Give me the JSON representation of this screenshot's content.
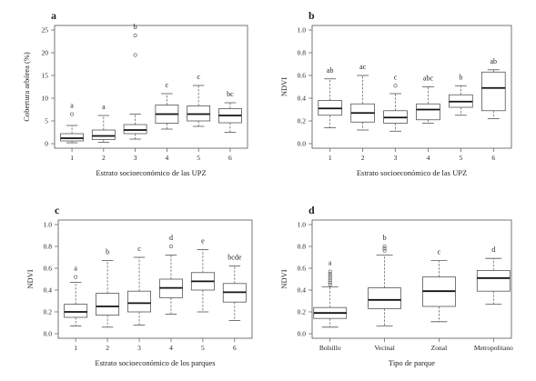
{
  "chart_data": [
    {
      "type": "box",
      "panel_label": "a",
      "title": "",
      "xlabel": "Estrato socioeconómico de las UPZ",
      "ylabel": "Cobertura arbórea (%)",
      "ylim": [
        0,
        25
      ],
      "yticks": [
        "0",
        "5",
        "10",
        "15",
        "20",
        "25"
      ],
      "yticks_values": [
        0,
        5,
        10,
        15,
        20,
        25
      ],
      "categories": [
        "1",
        "2",
        "3",
        "4",
        "5",
        "6"
      ],
      "boxes": [
        {
          "min": 0.2,
          "q1": 0.6,
          "median": 1.2,
          "q3": 2.2,
          "max": 4.0,
          "outliers": [
            6.5
          ]
        },
        {
          "min": 0.3,
          "q1": 0.9,
          "median": 1.7,
          "q3": 3.0,
          "max": 6.2,
          "outliers": []
        },
        {
          "min": 1.0,
          "q1": 2.2,
          "median": 3.0,
          "q3": 4.2,
          "max": 6.5,
          "outliers": [
            19.5,
            23.8
          ]
        },
        {
          "min": 3.2,
          "q1": 4.5,
          "median": 6.5,
          "q3": 8.5,
          "max": 11.0,
          "outliers": []
        },
        {
          "min": 3.8,
          "q1": 5.0,
          "median": 6.5,
          "q3": 8.3,
          "max": 12.8,
          "outliers": []
        },
        {
          "min": 2.5,
          "q1": 4.6,
          "median": 6.2,
          "q3": 7.7,
          "max": 9.0,
          "outliers": []
        }
      ],
      "letters": [
        "a",
        "a",
        "b",
        "c",
        "c",
        "bc"
      ]
    },
    {
      "type": "box",
      "panel_label": "b",
      "title": "",
      "xlabel": "Estrato socioeconómico de las UPZ",
      "ylabel": "NDVI",
      "ylim": [
        0,
        1
      ],
      "yticks": [
        "0.0",
        "0.2",
        "0.4",
        "0.6",
        "0.8",
        "1.0"
      ],
      "yticks_values": [
        0,
        0.2,
        0.4,
        0.6,
        0.8,
        1.0
      ],
      "categories": [
        "1",
        "2",
        "3",
        "4",
        "5",
        "6"
      ],
      "boxes": [
        {
          "min": 0.14,
          "q1": 0.25,
          "median": 0.31,
          "q3": 0.38,
          "max": 0.57,
          "outliers": []
        },
        {
          "min": 0.12,
          "q1": 0.19,
          "median": 0.27,
          "q3": 0.35,
          "max": 0.6,
          "outliers": []
        },
        {
          "min": 0.11,
          "q1": 0.18,
          "median": 0.23,
          "q3": 0.29,
          "max": 0.44,
          "outliers": [
            0.51
          ]
        },
        {
          "min": 0.18,
          "q1": 0.21,
          "median": 0.3,
          "q3": 0.35,
          "max": 0.5,
          "outliers": []
        },
        {
          "min": 0.25,
          "q1": 0.32,
          "median": 0.37,
          "q3": 0.43,
          "max": 0.51,
          "outliers": []
        },
        {
          "min": 0.22,
          "q1": 0.29,
          "median": 0.49,
          "q3": 0.63,
          "max": 0.65,
          "outliers": []
        }
      ],
      "letters": [
        "ab",
        "ac",
        "c",
        "abc",
        "b",
        "ab"
      ]
    },
    {
      "type": "box",
      "panel_label": "c",
      "title": "",
      "xlabel": "Estrato socioeconómico de los parques",
      "ylabel": "NDVI",
      "ylim": [
        0,
        1
      ],
      "yticks": [
        "0.0",
        "0.2",
        "0.4",
        "0.6",
        "0.8",
        "1.0"
      ],
      "yticks_values": [
        0,
        0.2,
        0.4,
        0.6,
        0.8,
        1.0
      ],
      "categories": [
        "1",
        "2",
        "3",
        "4",
        "5",
        "6"
      ],
      "boxes": [
        {
          "min": 0.07,
          "q1": 0.15,
          "median": 0.2,
          "q3": 0.27,
          "max": 0.47,
          "outliers": [
            0.52
          ]
        },
        {
          "min": 0.06,
          "q1": 0.17,
          "median": 0.25,
          "q3": 0.37,
          "max": 0.67,
          "outliers": []
        },
        {
          "min": 0.08,
          "q1": 0.2,
          "median": 0.28,
          "q3": 0.39,
          "max": 0.7,
          "outliers": []
        },
        {
          "min": 0.18,
          "q1": 0.33,
          "median": 0.42,
          "q3": 0.5,
          "max": 0.72,
          "outliers": [
            0.8
          ]
        },
        {
          "min": 0.2,
          "q1": 0.4,
          "median": 0.48,
          "q3": 0.56,
          "max": 0.77,
          "outliers": []
        },
        {
          "min": 0.12,
          "q1": 0.29,
          "median": 0.38,
          "q3": 0.46,
          "max": 0.62,
          "outliers": []
        }
      ],
      "letters": [
        "a",
        "b",
        "c",
        "d",
        "e",
        "bcde"
      ]
    },
    {
      "type": "box",
      "panel_label": "d",
      "title": "",
      "xlabel": "Tipo de parque",
      "ylabel": "NDVI",
      "ylim": [
        0,
        1
      ],
      "yticks": [
        "0.0",
        "0.2",
        "0.4",
        "0.6",
        "0.8",
        "1.0"
      ],
      "yticks_values": [
        0,
        0.2,
        0.4,
        0.6,
        0.8,
        1.0
      ],
      "categories": [
        "Bolsillo",
        "Vecinal",
        "Zonal",
        "Metropolitano"
      ],
      "boxes": [
        {
          "min": 0.06,
          "q1": 0.14,
          "median": 0.19,
          "q3": 0.24,
          "max": 0.43,
          "outliers": [
            0.45,
            0.47,
            0.49,
            0.51,
            0.53,
            0.55,
            0.57
          ]
        },
        {
          "min": 0.07,
          "q1": 0.23,
          "median": 0.31,
          "q3": 0.42,
          "max": 0.72,
          "outliers": [
            0.76,
            0.78,
            0.8
          ]
        },
        {
          "min": 0.11,
          "q1": 0.25,
          "median": 0.39,
          "q3": 0.52,
          "max": 0.67,
          "outliers": []
        },
        {
          "min": 0.27,
          "q1": 0.39,
          "median": 0.51,
          "q3": 0.58,
          "max": 0.69,
          "outliers": []
        }
      ],
      "letters": [
        "a",
        "b",
        "c",
        "d"
      ]
    }
  ]
}
